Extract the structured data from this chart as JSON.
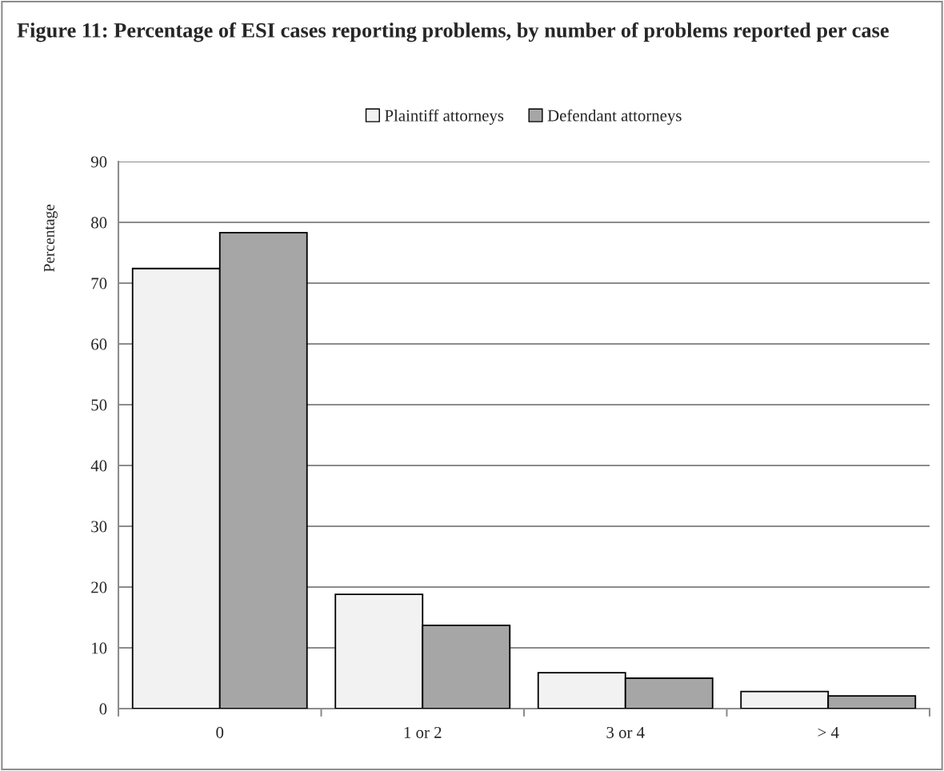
{
  "chart_data": {
    "type": "bar",
    "title": "Figure 11: Percentage of ESI cases reporting problems, by number of problems reported per case",
    "ylabel": "Percentage",
    "categories": [
      "0",
      "1 or 2",
      "3 or 4",
      "> 4"
    ],
    "series": [
      {
        "name": "Plaintiff attorneys",
        "color": "#f2f2f2",
        "values": [
          72.4,
          18.8,
          5.9,
          2.8
        ]
      },
      {
        "name": "Defendant attorneys",
        "color": "#a6a6a6",
        "values": [
          78.3,
          13.7,
          5.0,
          2.1
        ]
      }
    ],
    "ylim": [
      0,
      90
    ],
    "yticks": [
      0,
      10,
      20,
      30,
      40,
      50,
      60,
      70,
      80,
      90
    ],
    "grid": "y",
    "legend": "top"
  }
}
